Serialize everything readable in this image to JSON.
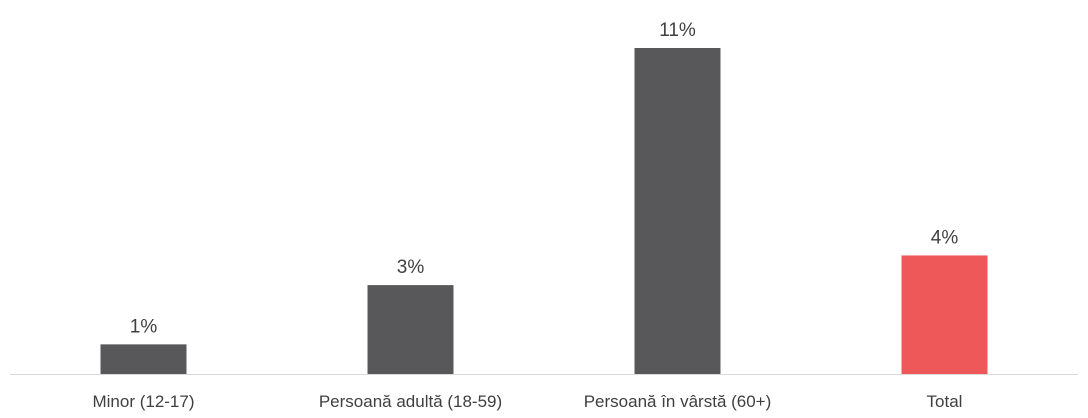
{
  "chart_data": {
    "type": "bar",
    "categories": [
      "Minor (12-17)",
      "Persoană adultă (18-59)",
      "Persoană în vârstă (60+)",
      "Total"
    ],
    "values": [
      1,
      3,
      11,
      4
    ],
    "data_labels": [
      "1%",
      "3%",
      "11%",
      "4%"
    ],
    "unit": "%",
    "title": "",
    "xlabel": "",
    "ylabel": "",
    "ylim": [
      0,
      11
    ],
    "grid": false,
    "legend": "none",
    "colors": {
      "default_bar": "#58585a",
      "highlight_bar": "#ef5858",
      "axis": "#d9d9d9",
      "text": "#404040"
    },
    "highlight_index": 3
  }
}
